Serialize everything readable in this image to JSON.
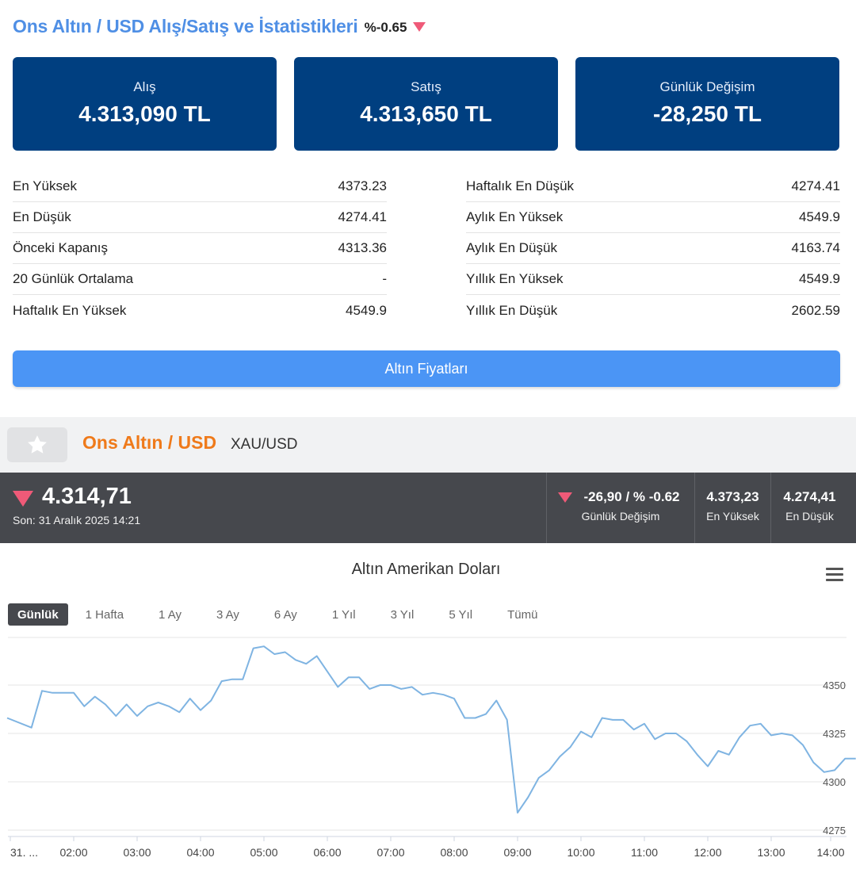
{
  "header": {
    "title": "Ons Altın / USD Alış/Satış ve İstatistikleri",
    "change_pct": "%-0.65"
  },
  "cards": [
    {
      "label": "Alış",
      "value": "4.313,090 TL"
    },
    {
      "label": "Satış",
      "value": "4.313,650 TL"
    },
    {
      "label": "Günlük Değişim",
      "value": "-28,250 TL"
    }
  ],
  "stats_left": [
    {
      "label": "En Yüksek",
      "value": "4373.23"
    },
    {
      "label": "En Düşük",
      "value": "4274.41"
    },
    {
      "label": "Önceki Kapanış",
      "value": "4313.36"
    },
    {
      "label": "20 Günlük Ortalama",
      "value": "-"
    },
    {
      "label": "Haftalık En Yüksek",
      "value": "4549.9"
    }
  ],
  "stats_right": [
    {
      "label": "Haftalık En Düşük",
      "value": "4274.41"
    },
    {
      "label": "Aylık En Yüksek",
      "value": "4549.9"
    },
    {
      "label": "Aylık En Düşük",
      "value": "4163.74"
    },
    {
      "label": "Yıllık En Yüksek",
      "value": "4549.9"
    },
    {
      "label": "Yıllık En Düşük",
      "value": "2602.59"
    }
  ],
  "cta_label": "Altın Fiyatları",
  "symbol": {
    "name": "Ons Altın / USD",
    "code": "XAU/USD"
  },
  "quote": {
    "price": "4.314,71",
    "time": "Son: 31 Aralık 2025 14:21",
    "change_value": "-26,90 / % -0.62",
    "change_label": "Günlük Değişim",
    "high_value": "4.373,23",
    "high_label": "En Yüksek",
    "low_value": "4.274,41",
    "low_label": "En Düşük"
  },
  "colors": {
    "title_blue": "#4f8fe5",
    "card_navy": "#003f80",
    "cta_blue": "#4b95f5",
    "symbol_orange": "#ef7a1a",
    "down_red": "#ef5a78",
    "quote_bar": "#46484d",
    "line": "#7fb4e2"
  },
  "chart": {
    "title": "Altın Amerikan Doları",
    "menu_icon": "hamburger-menu-icon",
    "ranges": [
      "Günlük",
      "1 Hafta",
      "1 Ay",
      "3 Ay",
      "6 Ay",
      "1 Yıl",
      "3 Yıl",
      "5 Yıl",
      "Tümü"
    ],
    "active_range": "Günlük"
  },
  "chart_data": {
    "type": "line",
    "title": "Altın Amerikan Doları",
    "x_ticks": [
      "31. ...",
      "02:00",
      "03:00",
      "04:00",
      "05:00",
      "06:00",
      "07:00",
      "08:00",
      "09:00",
      "10:00",
      "11:00",
      "12:00",
      "13:00",
      "14:00"
    ],
    "y_ticks": [
      4275,
      4300,
      4325,
      4350
    ],
    "ylim": [
      4272,
      4373
    ],
    "grid": true,
    "series": [
      {
        "x": [
          "01:15",
          "01:20",
          "01:30",
          "01:40",
          "01:55",
          "02:00",
          "02:10",
          "02:20",
          "02:30",
          "02:40",
          "02:50",
          "03:00",
          "03:10",
          "03:20",
          "03:30",
          "03:40",
          "03:50",
          "04:00",
          "04:10",
          "04:20",
          "04:30",
          "04:40",
          "04:50",
          "05:00",
          "05:10",
          "05:20",
          "05:30",
          "05:40",
          "05:50",
          "06:00",
          "06:10",
          "06:20",
          "06:30",
          "06:40",
          "06:50",
          "07:00",
          "07:10",
          "07:20",
          "07:30",
          "07:40",
          "07:50",
          "08:00",
          "08:10",
          "08:20",
          "08:30",
          "08:40",
          "08:50",
          "09:00",
          "09:10",
          "09:20",
          "09:30",
          "09:40",
          "09:50",
          "10:00",
          "10:10",
          "10:20",
          "10:30",
          "10:40",
          "10:50",
          "11:00",
          "11:10",
          "11:20",
          "11:30",
          "11:40",
          "11:50",
          "12:00",
          "12:10",
          "12:20",
          "12:30",
          "12:40",
          "12:50",
          "13:00",
          "13:10",
          "13:20",
          "13:30",
          "13:40",
          "13:50",
          "14:00",
          "14:10",
          "14:20"
        ],
        "values": [
          4333,
          4328,
          4347,
          4346,
          4346,
          4346,
          4339,
          4344,
          4340,
          4334,
          4340,
          4334,
          4339,
          4341,
          4339,
          4336,
          4343,
          4337,
          4342,
          4352,
          4353,
          4353,
          4369,
          4370,
          4366,
          4367,
          4363,
          4361,
          4365,
          4357,
          4349,
          4354,
          4354,
          4348,
          4350,
          4350,
          4348,
          4349,
          4345,
          4346,
          4345,
          4343,
          4333,
          4333,
          4335,
          4342,
          4332,
          4284,
          4292,
          4302,
          4306,
          4313,
          4318,
          4326,
          4323,
          4333,
          4332,
          4332,
          4327,
          4330,
          4322,
          4325,
          4325,
          4321,
          4314,
          4308,
          4316,
          4314,
          4323,
          4329,
          4330,
          4324,
          4325,
          4324,
          4319,
          4310,
          4305,
          4306,
          4312,
          4312
        ]
      }
    ]
  }
}
